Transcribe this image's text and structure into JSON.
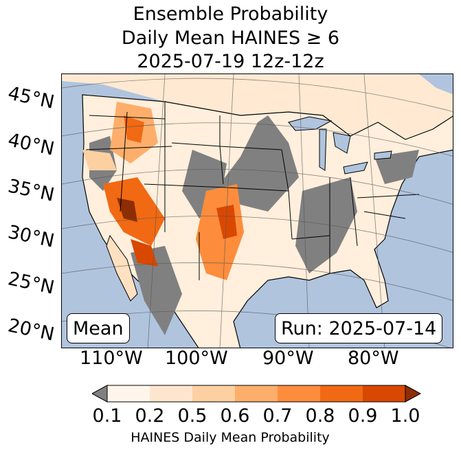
{
  "title": {
    "line1": "Ensemble Probability",
    "line2": "Daily Mean HAINES ≥ 6",
    "line3": "2025-07-19 12z-12z"
  },
  "map": {
    "lat_labels": [
      "45°N",
      "40°N",
      "35°N",
      "30°N",
      "25°N",
      "20°N"
    ],
    "lon_labels": [
      "110°W",
      "100°W",
      "90°W",
      "80°W"
    ],
    "mean_label": "Mean",
    "run_label": "Run: 2025-07-14",
    "colors": {
      "ocean": "#b0c4de",
      "land_low": "#ffefdc",
      "missing": "#808080"
    }
  },
  "colorbar": {
    "ticks": [
      "0.1",
      "0.2",
      "0.5",
      "0.6",
      "0.7",
      "0.8",
      "0.9",
      "1.0"
    ],
    "colors": [
      "#fff5eb",
      "#fee6ce",
      "#fdd0a2",
      "#fdae6b",
      "#fd8d3c",
      "#f16913",
      "#d94801",
      "#8c2d04"
    ],
    "under_color": "#808080",
    "label": "HAINES Daily Mean Probability"
  }
}
